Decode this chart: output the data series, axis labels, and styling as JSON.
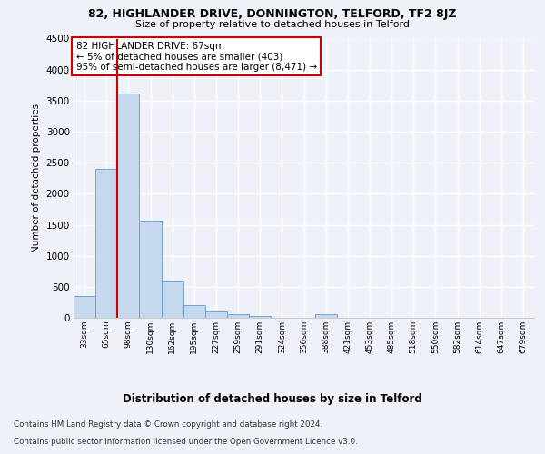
{
  "title_line1": "82, HIGHLANDER DRIVE, DONNINGTON, TELFORD, TF2 8JZ",
  "title_line2": "Size of property relative to detached houses in Telford",
  "xlabel": "Distribution of detached houses by size in Telford",
  "ylabel": "Number of detached properties",
  "categories": [
    "33sqm",
    "65sqm",
    "98sqm",
    "130sqm",
    "162sqm",
    "195sqm",
    "227sqm",
    "259sqm",
    "291sqm",
    "324sqm",
    "356sqm",
    "388sqm",
    "421sqm",
    "453sqm",
    "485sqm",
    "518sqm",
    "550sqm",
    "582sqm",
    "614sqm",
    "647sqm",
    "679sqm"
  ],
  "values": [
    350,
    2400,
    3620,
    1570,
    590,
    200,
    105,
    65,
    30,
    0,
    0,
    55,
    0,
    0,
    0,
    0,
    0,
    0,
    0,
    0,
    0
  ],
  "bar_color": "#c5d8ed",
  "bar_edge_color": "#6699cc",
  "red_line_x": 1.5,
  "annotation_text": "82 HIGHLANDER DRIVE: 67sqm\n← 5% of detached houses are smaller (403)\n95% of semi-detached houses are larger (8,471) →",
  "annotation_box_facecolor": "#ffffff",
  "annotation_box_edgecolor": "#cc0000",
  "red_line_color": "#cc0000",
  "ylim": [
    0,
    4500
  ],
  "yticks": [
    0,
    500,
    1000,
    1500,
    2000,
    2500,
    3000,
    3500,
    4000,
    4500
  ],
  "footnote_line1": "Contains HM Land Registry data © Crown copyright and database right 2024.",
  "footnote_line2": "Contains public sector information licensed under the Open Government Licence v3.0.",
  "bg_color": "#eef2f8",
  "grid_color": "#ffffff"
}
